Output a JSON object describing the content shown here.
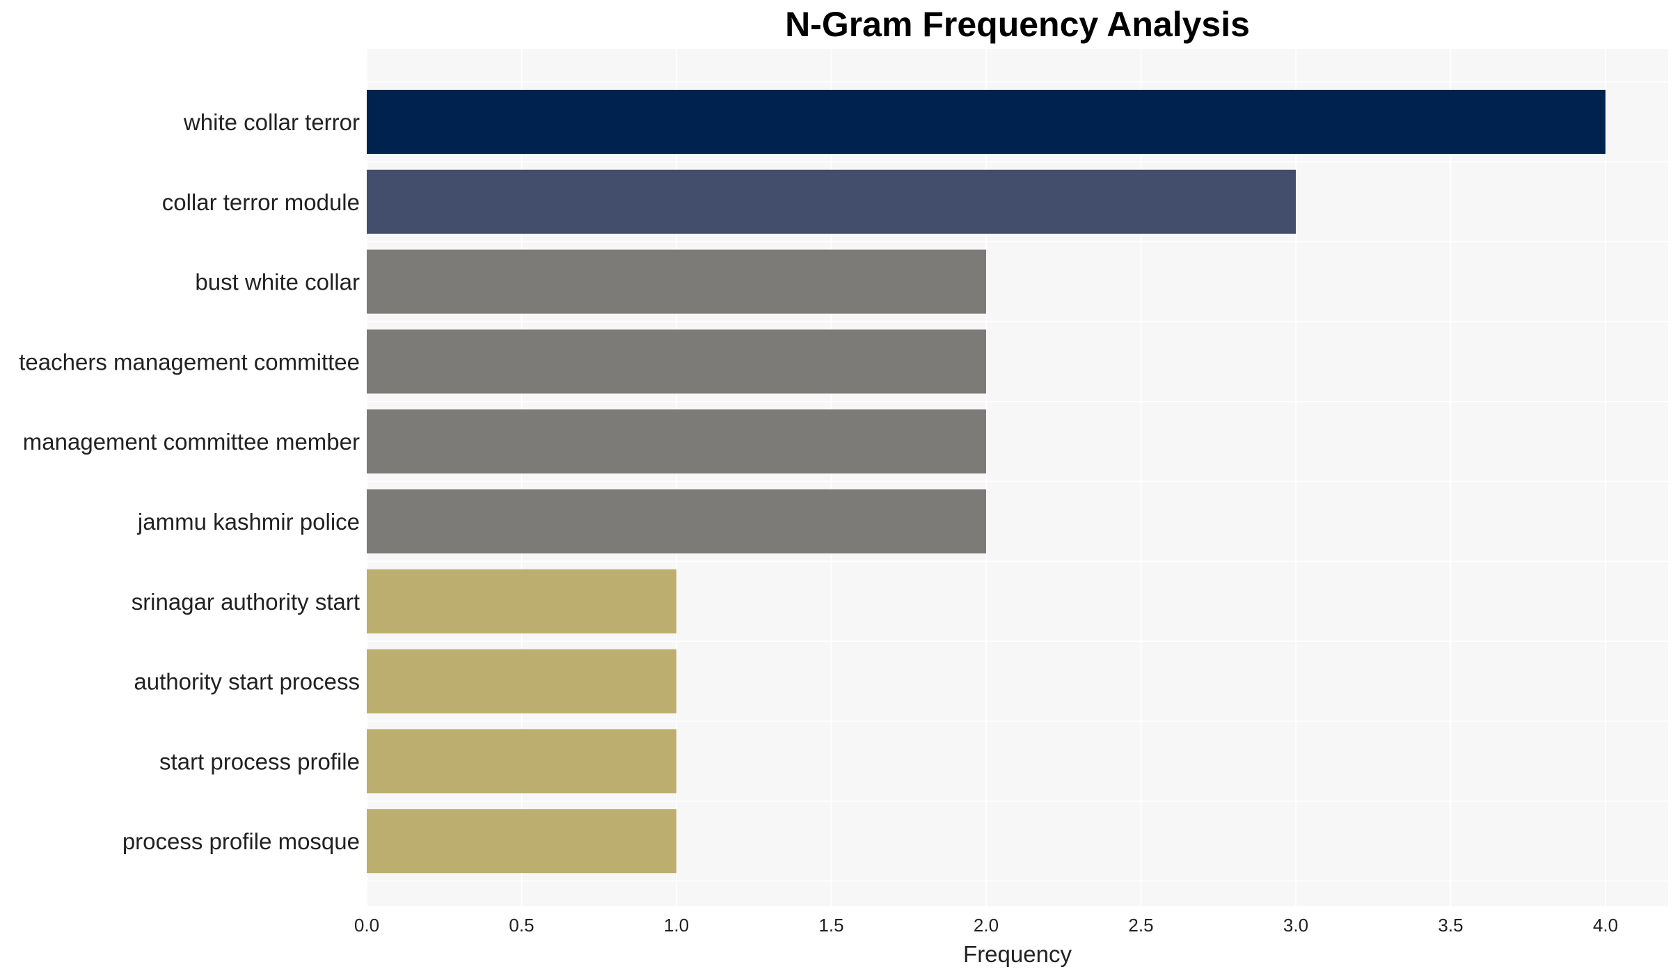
{
  "chart_data": {
    "type": "bar",
    "orientation": "horizontal",
    "title": "N-Gram Frequency Analysis",
    "xlabel": "Frequency",
    "ylabel": "",
    "xlim": [
      0,
      4.2
    ],
    "xticks": [
      "0.0",
      "0.5",
      "1.0",
      "1.5",
      "2.0",
      "2.5",
      "3.0",
      "3.5",
      "4.0"
    ],
    "grid": true,
    "categories": [
      "white collar terror",
      "collar terror module",
      "bust white collar",
      "teachers management committee",
      "management committee member",
      "jammu kashmir police",
      "srinagar authority start",
      "authority start process",
      "start process profile",
      "process profile mosque"
    ],
    "values": [
      4,
      3,
      2,
      2,
      2,
      2,
      1,
      1,
      1,
      1
    ],
    "colors": [
      "#00224e",
      "#434e6c",
      "#7c7b78",
      "#7c7b78",
      "#7c7b78",
      "#7c7b78",
      "#bcae6e",
      "#bcae6e",
      "#bcae6e",
      "#bcae6e"
    ],
    "plot_background": "#f7f7f7",
    "grid_color": "#ffffff"
  }
}
